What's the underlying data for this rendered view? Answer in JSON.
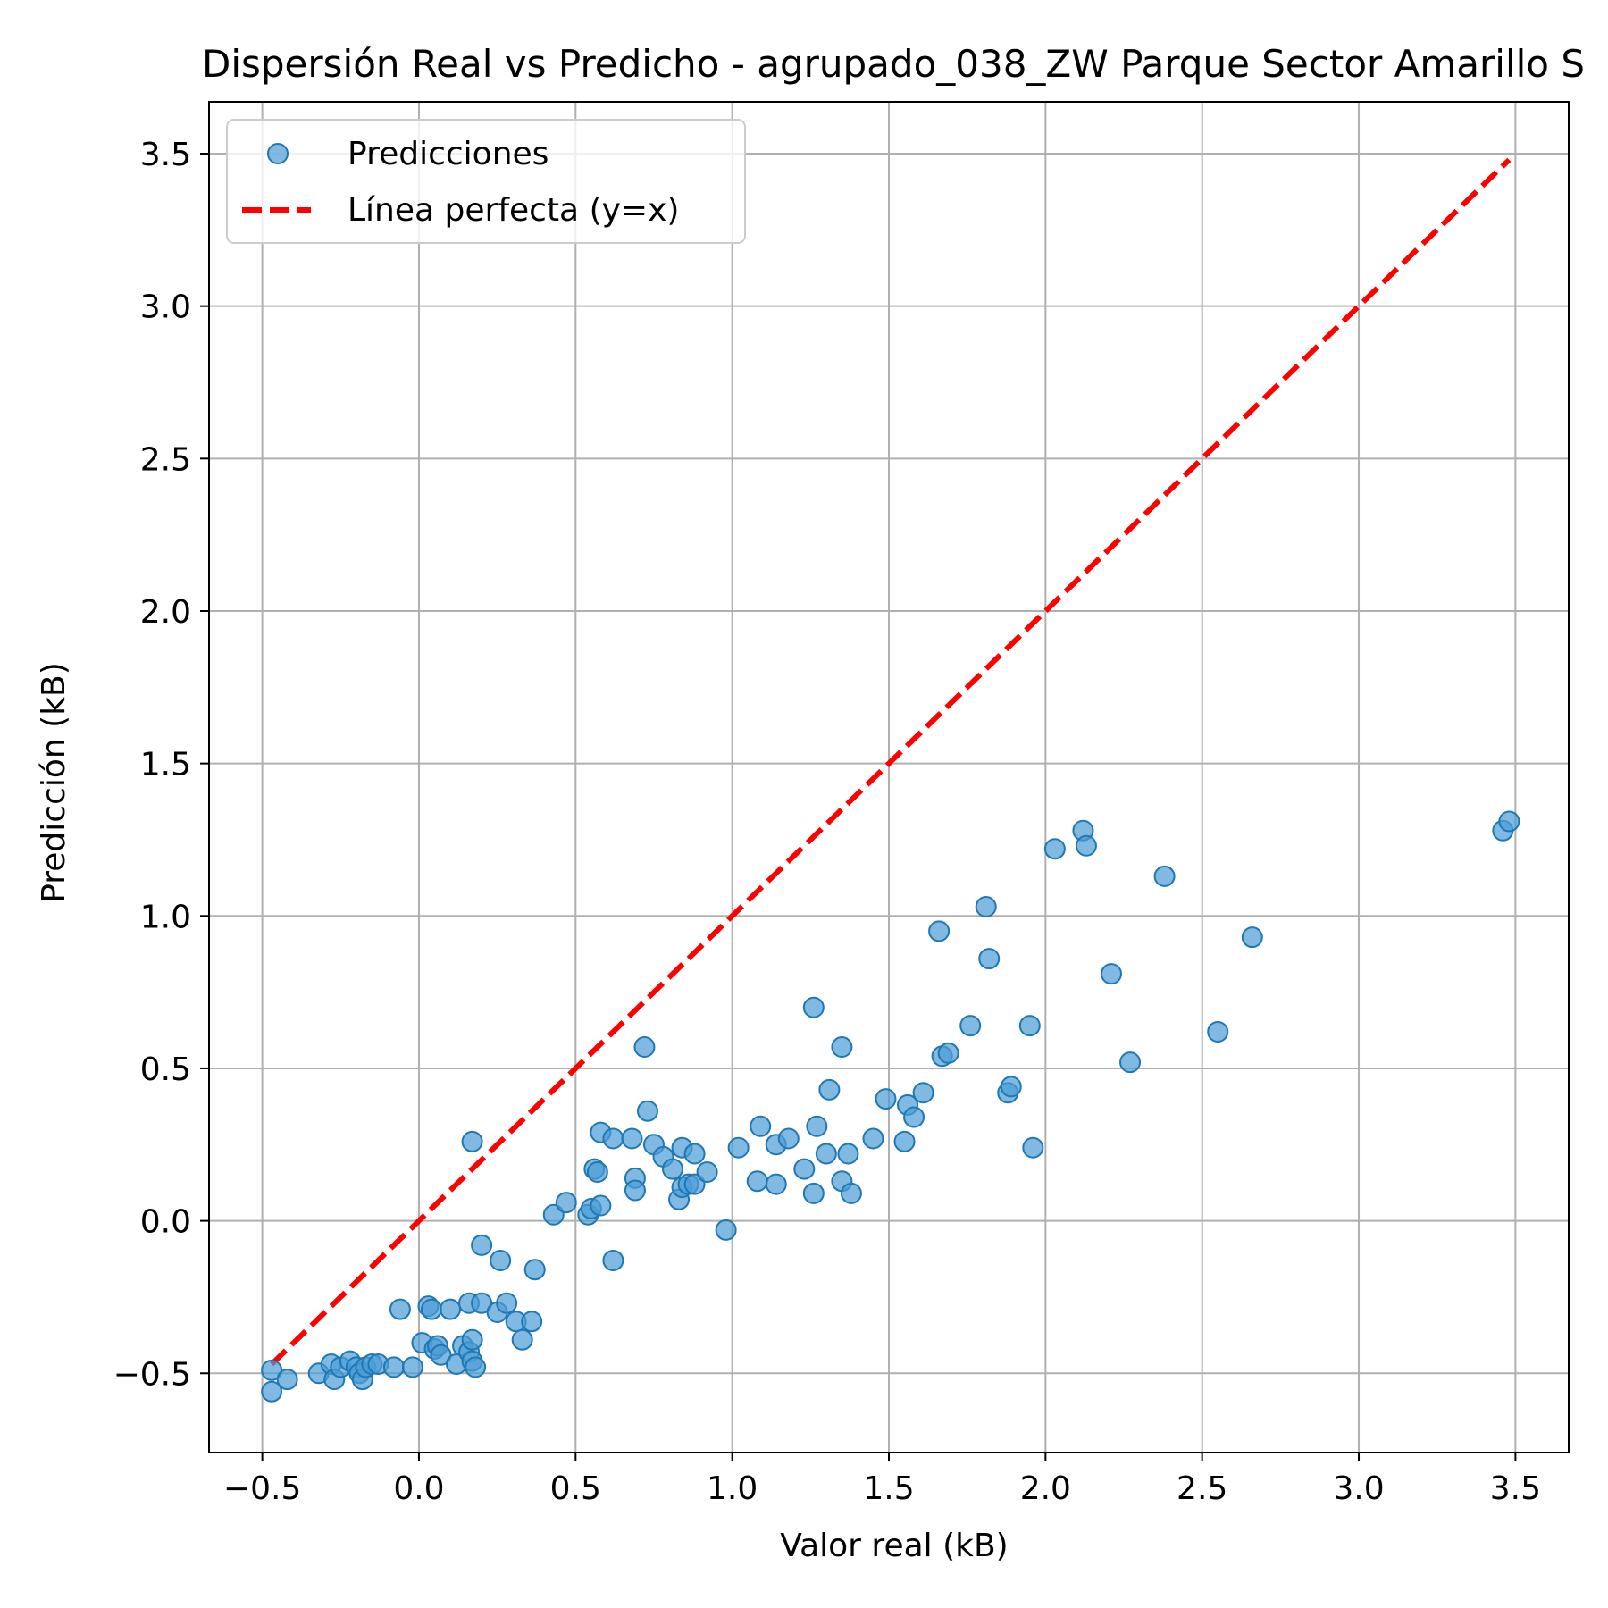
{
  "chart_data": {
    "type": "scatter",
    "title": "Dispersión Real vs Predicho - agrupado_038_ZW Parque Sector Amarillo S",
    "xlabel": "Valor real (kB)",
    "ylabel": "Predicción (kB)",
    "xlim": [
      -0.67,
      3.67
    ],
    "ylim": [
      -0.76,
      3.67
    ],
    "xticks": [
      -0.5,
      0.0,
      0.5,
      1.0,
      1.5,
      2.0,
      2.5,
      3.0,
      3.5
    ],
    "yticks": [
      -0.5,
      0.0,
      0.5,
      1.0,
      1.5,
      2.0,
      2.5,
      3.0,
      3.5
    ],
    "xtick_labels": [
      "−0.5",
      "0.0",
      "0.5",
      "1.0",
      "1.5",
      "2.0",
      "2.5",
      "3.0",
      "3.5"
    ],
    "ytick_labels": [
      "−0.5",
      "0.0",
      "0.5",
      "1.0",
      "1.5",
      "2.0",
      "2.5",
      "3.0",
      "3.5"
    ],
    "grid": true,
    "legend_position": "top-left",
    "colors": {
      "points": "#1f77b4",
      "points_fill": "#4a9cd6",
      "line": "#ff0000",
      "grid": "#b0b0b0"
    },
    "series": [
      {
        "name": "Predicciones",
        "kind": "scatter",
        "points": [
          [
            -0.47,
            -0.49
          ],
          [
            -0.47,
            -0.56
          ],
          [
            -0.42,
            -0.52
          ],
          [
            -0.32,
            -0.5
          ],
          [
            -0.28,
            -0.47
          ],
          [
            -0.27,
            -0.52
          ],
          [
            -0.25,
            -0.48
          ],
          [
            -0.22,
            -0.46
          ],
          [
            -0.2,
            -0.48
          ],
          [
            -0.19,
            -0.5
          ],
          [
            -0.18,
            -0.52
          ],
          [
            -0.17,
            -0.48
          ],
          [
            -0.15,
            -0.47
          ],
          [
            -0.13,
            -0.47
          ],
          [
            -0.08,
            -0.48
          ],
          [
            -0.06,
            -0.29
          ],
          [
            -0.02,
            -0.48
          ],
          [
            0.01,
            -0.4
          ],
          [
            0.03,
            -0.28
          ],
          [
            0.04,
            -0.29
          ],
          [
            0.05,
            -0.42
          ],
          [
            0.06,
            -0.41
          ],
          [
            0.07,
            -0.44
          ],
          [
            0.1,
            -0.29
          ],
          [
            0.12,
            -0.47
          ],
          [
            0.14,
            -0.41
          ],
          [
            0.16,
            -0.43
          ],
          [
            0.16,
            -0.27
          ],
          [
            0.17,
            -0.39
          ],
          [
            0.17,
            -0.46
          ],
          [
            0.17,
            0.26
          ],
          [
            0.18,
            -0.48
          ],
          [
            0.2,
            -0.27
          ],
          [
            0.2,
            -0.08
          ],
          [
            0.25,
            -0.3
          ],
          [
            0.26,
            -0.13
          ],
          [
            0.28,
            -0.27
          ],
          [
            0.31,
            -0.33
          ],
          [
            0.33,
            -0.39
          ],
          [
            0.36,
            -0.33
          ],
          [
            0.37,
            -0.16
          ],
          [
            0.43,
            0.02
          ],
          [
            0.47,
            0.06
          ],
          [
            0.54,
            0.02
          ],
          [
            0.55,
            0.04
          ],
          [
            0.56,
            0.17
          ],
          [
            0.57,
            0.16
          ],
          [
            0.58,
            0.29
          ],
          [
            0.58,
            0.05
          ],
          [
            0.62,
            0.27
          ],
          [
            0.62,
            -0.13
          ],
          [
            0.68,
            0.27
          ],
          [
            0.69,
            0.14
          ],
          [
            0.69,
            0.1
          ],
          [
            0.72,
            0.57
          ],
          [
            0.73,
            0.36
          ],
          [
            0.75,
            0.25
          ],
          [
            0.78,
            0.21
          ],
          [
            0.81,
            0.17
          ],
          [
            0.83,
            0.07
          ],
          [
            0.84,
            0.24
          ],
          [
            0.84,
            0.11
          ],
          [
            0.86,
            0.12
          ],
          [
            0.88,
            0.22
          ],
          [
            0.88,
            0.12
          ],
          [
            0.92,
            0.16
          ],
          [
            0.98,
            -0.03
          ],
          [
            1.02,
            0.24
          ],
          [
            1.08,
            0.13
          ],
          [
            1.09,
            0.31
          ],
          [
            1.14,
            0.12
          ],
          [
            1.14,
            0.25
          ],
          [
            1.18,
            0.27
          ],
          [
            1.23,
            0.17
          ],
          [
            1.26,
            0.7
          ],
          [
            1.26,
            0.09
          ],
          [
            1.27,
            0.31
          ],
          [
            1.3,
            0.22
          ],
          [
            1.31,
            0.43
          ],
          [
            1.35,
            0.13
          ],
          [
            1.35,
            0.57
          ],
          [
            1.37,
            0.22
          ],
          [
            1.38,
            0.09
          ],
          [
            1.45,
            0.27
          ],
          [
            1.49,
            0.4
          ],
          [
            1.55,
            0.26
          ],
          [
            1.56,
            0.38
          ],
          [
            1.58,
            0.34
          ],
          [
            1.61,
            0.42
          ],
          [
            1.66,
            0.95
          ],
          [
            1.67,
            0.54
          ],
          [
            1.69,
            0.55
          ],
          [
            1.76,
            0.64
          ],
          [
            1.81,
            1.03
          ],
          [
            1.82,
            0.86
          ],
          [
            1.88,
            0.42
          ],
          [
            1.89,
            0.44
          ],
          [
            1.95,
            0.64
          ],
          [
            1.96,
            0.24
          ],
          [
            2.03,
            1.22
          ],
          [
            2.12,
            1.28
          ],
          [
            2.13,
            1.23
          ],
          [
            2.21,
            0.81
          ],
          [
            2.27,
            0.52
          ],
          [
            2.38,
            1.13
          ],
          [
            2.55,
            0.62
          ],
          [
            2.66,
            0.93
          ],
          [
            3.46,
            1.28
          ],
          [
            3.48,
            1.31
          ]
        ]
      },
      {
        "name": "Línea perfecta (y=x)",
        "kind": "line",
        "x": [
          -0.47,
          3.48
        ],
        "y": [
          -0.47,
          3.48
        ]
      }
    ]
  }
}
